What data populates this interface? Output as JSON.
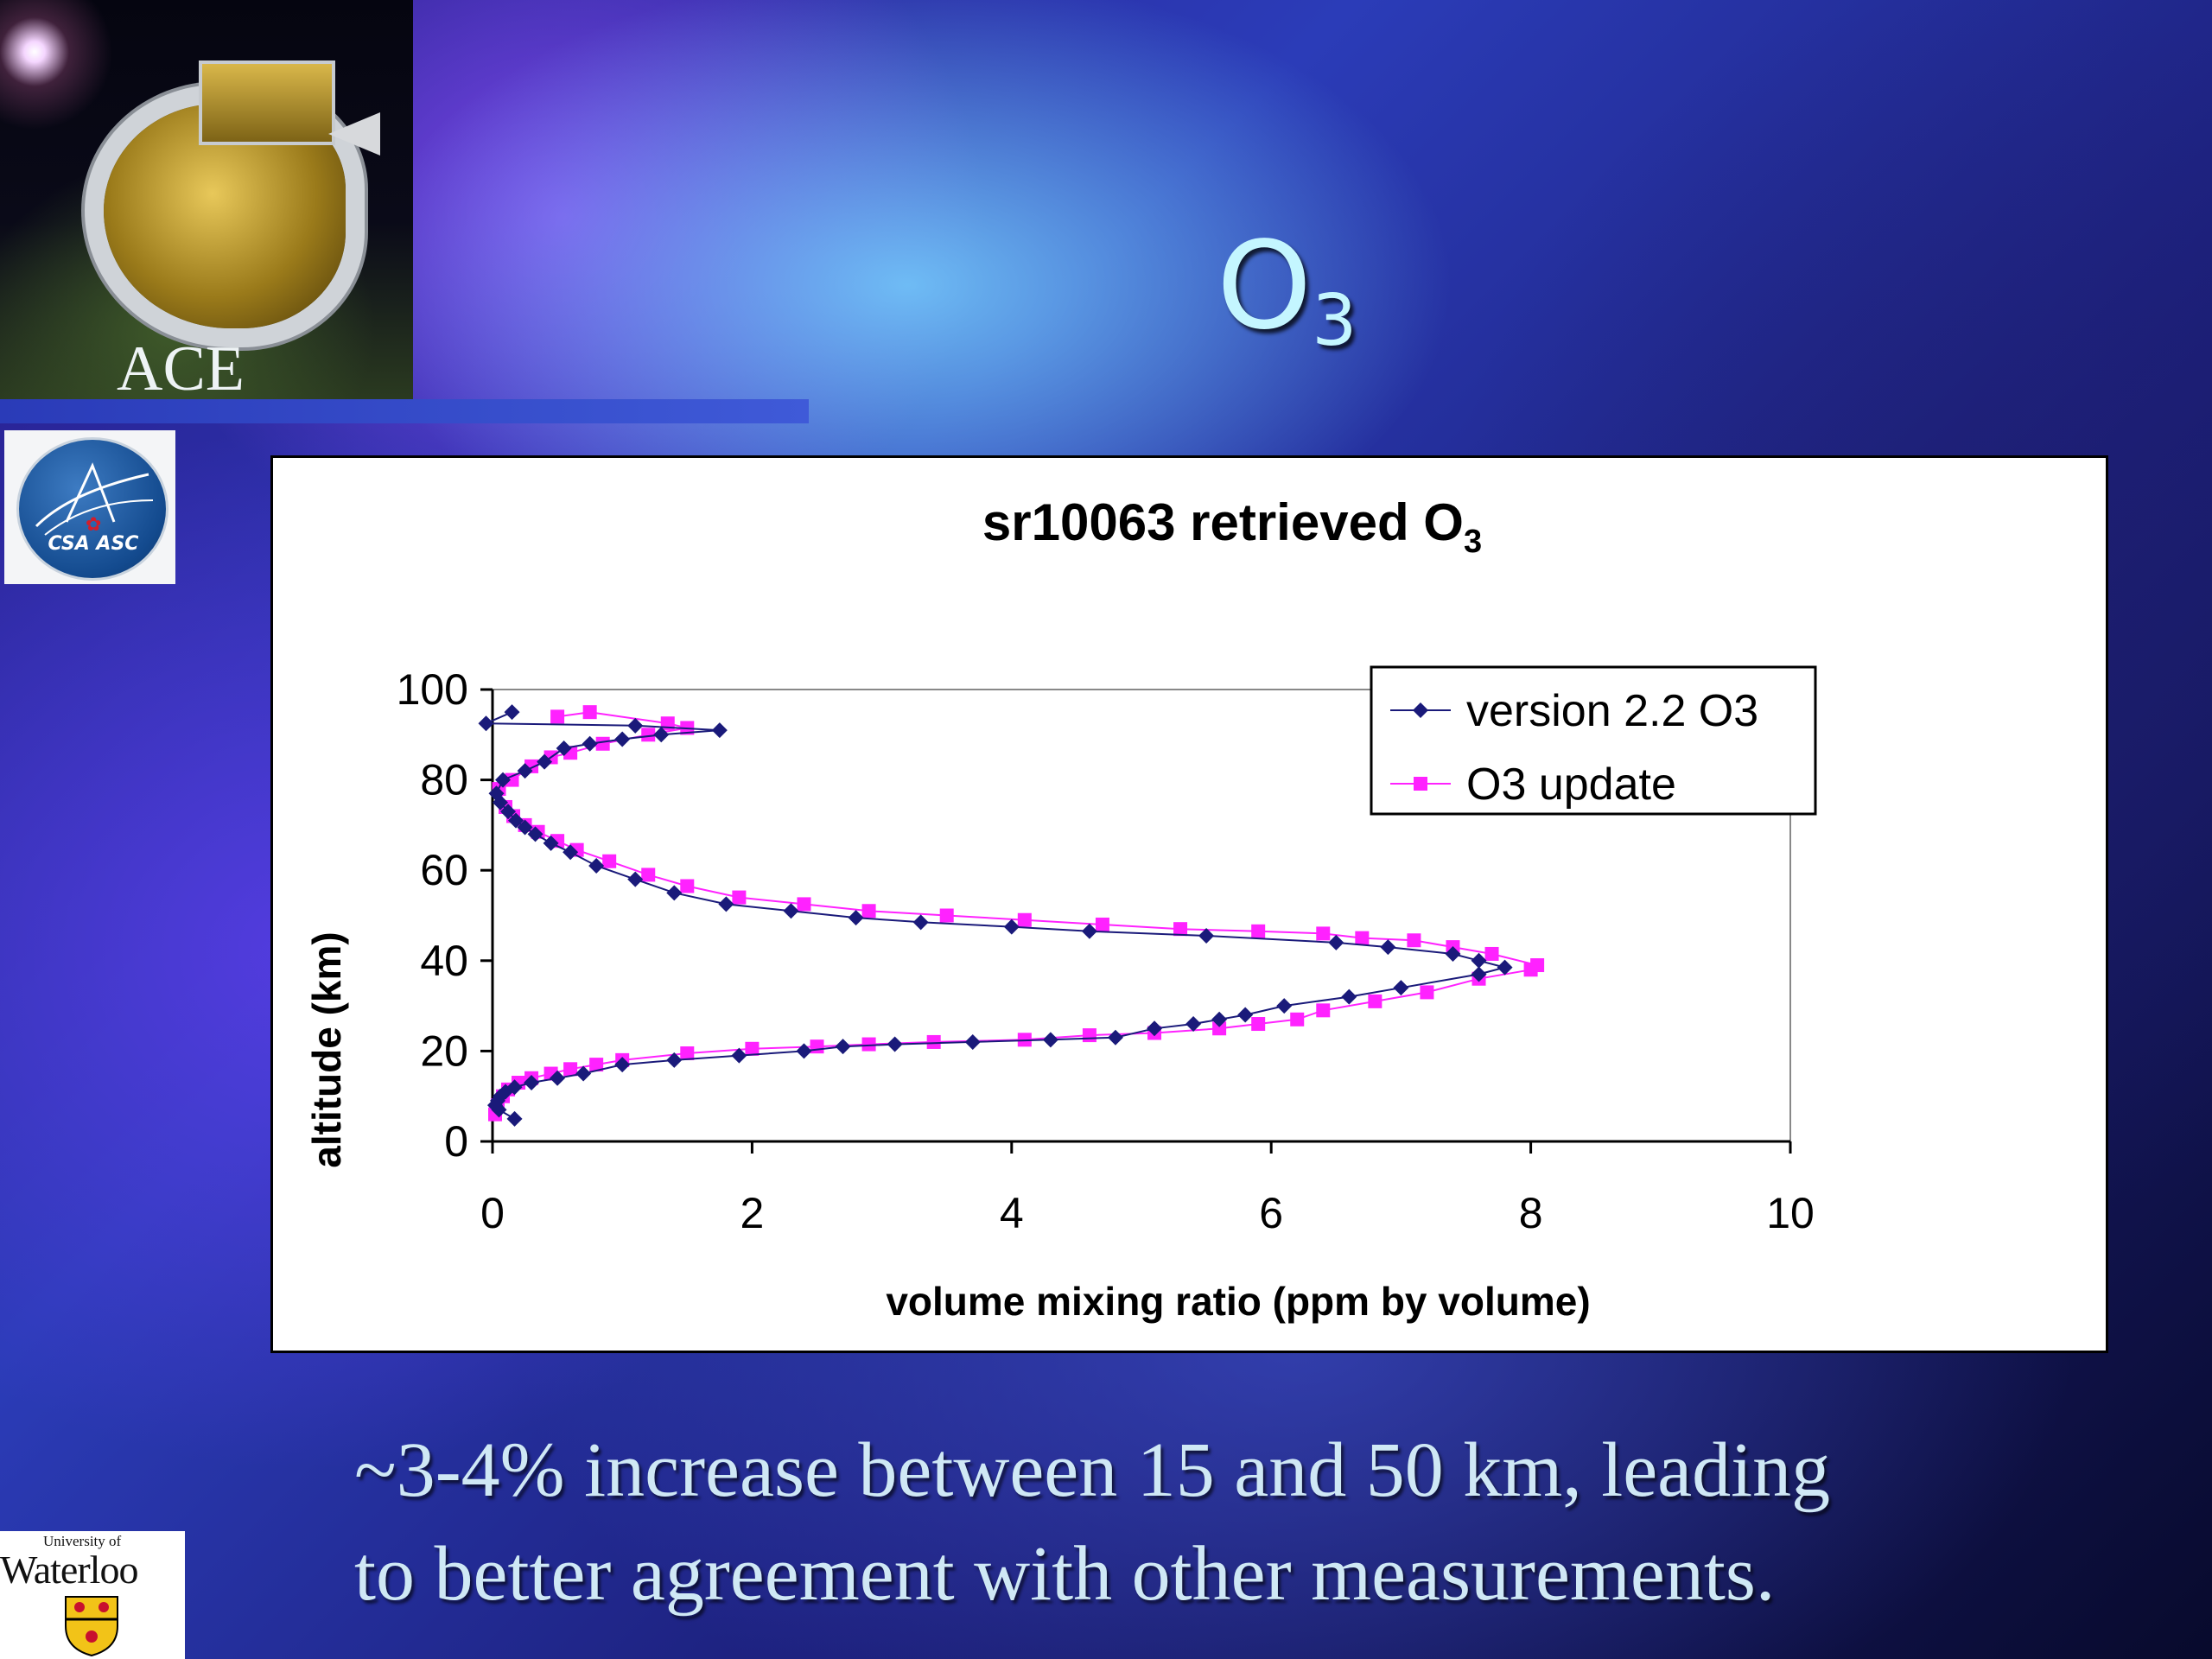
{
  "slide": {
    "title_main": "O",
    "title_subscript": "3",
    "caption_line1": "~3-4% increase between 15 and 50 km, leading",
    "caption_line2": "to better agreement with other measurements."
  },
  "logos": {
    "ace": "ACE",
    "csa": "CSA ASC",
    "waterloo_small": "University of",
    "waterloo_big": "Waterloo"
  },
  "colors": {
    "series1": "#1a1a7a",
    "series2": "#ff22ff",
    "title_text": "#c4f6ff",
    "caption_text": "#cfe8f5"
  },
  "chart_data": {
    "type": "line",
    "title": "sr10063 retrieved O",
    "title_subscript": "3",
    "xlabel": "volume mixing ratio (ppm by volume)",
    "ylabel": "altitude (km)",
    "xlim": [
      0,
      10
    ],
    "ylim": [
      0,
      100
    ],
    "x_ticks": [
      "0",
      "2",
      "4",
      "6",
      "8",
      "10"
    ],
    "y_ticks": [
      "0",
      "20",
      "40",
      "60",
      "80",
      "100"
    ],
    "grid": false,
    "legend_position": "top-right",
    "series": [
      {
        "name": "version 2.2 O3",
        "marker": "diamond",
        "x": [
          0.17,
          0.05,
          0.02,
          0.04,
          0.06,
          0.1,
          0.17,
          0.3,
          0.5,
          0.7,
          1.0,
          1.4,
          1.9,
          2.4,
          2.7,
          3.1,
          3.7,
          4.3,
          4.8,
          5.1,
          5.4,
          5.6,
          5.8,
          6.1,
          6.6,
          7.0,
          7.6,
          7.8,
          7.6,
          7.4,
          6.9,
          6.5,
          5.5,
          4.6,
          4.0,
          3.3,
          2.8,
          2.3,
          1.8,
          1.4,
          1.1,
          0.8,
          0.6,
          0.45,
          0.33,
          0.25,
          0.18,
          0.12,
          0.06,
          0.03,
          0.08,
          0.25,
          0.4,
          0.55,
          0.75,
          1.0,
          1.3,
          1.75,
          1.1,
          -0.05,
          0.15
        ],
        "y": [
          5,
          7,
          8,
          9,
          10,
          11,
          12,
          13,
          14,
          15,
          17,
          18,
          19,
          20,
          21,
          21.5,
          22,
          22.5,
          23,
          25,
          26,
          27,
          28,
          30,
          32,
          34,
          37,
          38.5,
          40,
          41.5,
          43,
          44,
          45.5,
          46.5,
          47.5,
          48.5,
          49.5,
          51,
          52.5,
          55,
          58,
          61,
          64,
          66,
          68,
          69.5,
          71,
          73,
          75,
          77,
          80,
          82,
          84,
          87,
          88,
          89,
          90,
          91,
          92,
          92.5,
          95
        ]
      },
      {
        "name": "O3 update",
        "marker": "square",
        "x": [
          0.02,
          0.04,
          0.08,
          0.12,
          0.2,
          0.3,
          0.45,
          0.6,
          0.8,
          1.0,
          1.5,
          2.0,
          2.5,
          2.9,
          3.4,
          4.1,
          4.6,
          5.1,
          5.6,
          5.9,
          6.2,
          6.4,
          6.8,
          7.2,
          7.6,
          8.0,
          8.05,
          7.7,
          7.4,
          7.1,
          6.7,
          6.4,
          5.9,
          5.3,
          4.7,
          4.1,
          3.5,
          2.9,
          2.4,
          1.9,
          1.5,
          1.2,
          0.9,
          0.65,
          0.5,
          0.35,
          0.25,
          0.16,
          0.1,
          0.05,
          0.15,
          0.3,
          0.45,
          0.6,
          0.85,
          1.2,
          1.5,
          1.35,
          0.75,
          0.5
        ],
        "y": [
          6,
          8,
          10,
          11.5,
          13,
          14,
          15,
          16,
          17,
          18,
          19.5,
          20.5,
          21,
          21.5,
          22,
          22.5,
          23.5,
          24,
          25,
          26,
          27,
          29,
          31,
          33,
          36,
          38,
          39,
          41.5,
          43,
          44.5,
          45,
          46,
          46.5,
          47,
          48,
          49,
          50,
          51,
          52.5,
          54,
          56.5,
          59,
          62,
          64.5,
          66.5,
          68.5,
          70,
          72,
          74,
          78,
          80,
          83,
          85,
          86,
          88,
          90,
          91.5,
          92.5,
          95,
          94
        ]
      }
    ]
  }
}
